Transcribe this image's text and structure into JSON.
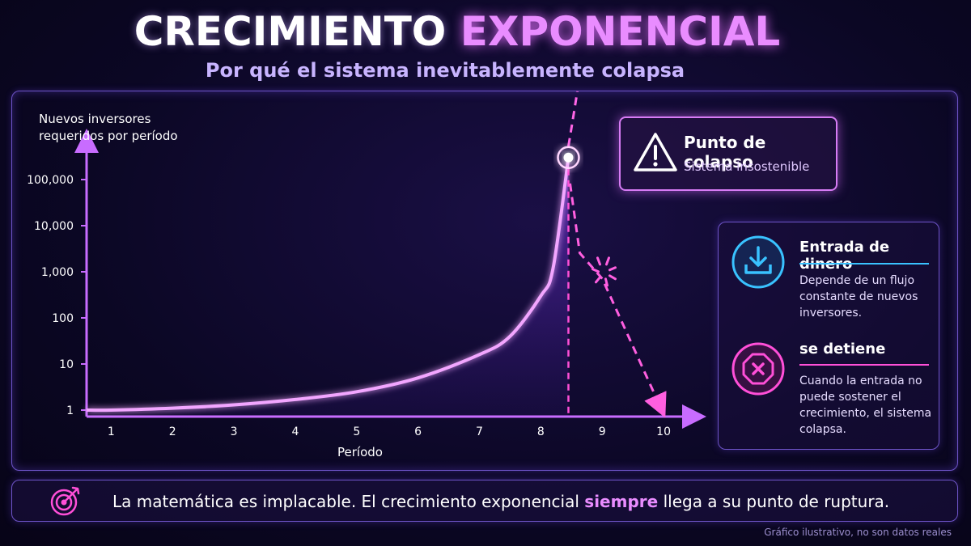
{
  "header": {
    "title_part1": "CRECIMIENTO",
    "title_part2": "EXPONENCIAL",
    "subtitle": "Por qué el sistema inevitablemente colapsa"
  },
  "chart_data": {
    "type": "line",
    "ylabel_line1": "Nuevos inversores",
    "ylabel_line2": "requeridos por período",
    "xlabel": "Período",
    "y_scale": "log",
    "y_ticks": [
      "1",
      "10",
      "100",
      "1,000",
      "10,000",
      "100,000"
    ],
    "x_ticks": [
      "1",
      "2",
      "3",
      "4",
      "5",
      "6",
      "7",
      "8",
      "9",
      "10"
    ],
    "xlim": [
      0.6,
      10.5
    ],
    "collapse_x": 8.45,
    "collapse_y": 300000,
    "series": [
      {
        "x": [
          0.6,
          1,
          2,
          3,
          4,
          5,
          6,
          7,
          7.5,
          8,
          8.2,
          8.45
        ],
        "y": [
          1,
          1,
          1.1,
          1.3,
          1.7,
          2.5,
          5,
          16,
          40,
          300,
          1200,
          300000
        ]
      }
    ],
    "grid": false
  },
  "callout": {
    "title": "Punto de colapso",
    "subtitle": "Sistema insostenible",
    "icon": "warning-icon"
  },
  "panel": {
    "item1": {
      "heading": "Entrada de dinero",
      "text": "Depende de un flujo constante de nuevos inversores.",
      "icon": "download-inbox-icon",
      "color": "#39c2ff"
    },
    "item2": {
      "heading": "se detiene",
      "text": "Cuando la entrada no puede sostener el crecimiento, el sistema colapsa.",
      "icon": "stop-octagon-icon",
      "color": "#ff4fd8"
    }
  },
  "footer": {
    "message_before": "La matemática es implacable. El crecimiento exponencial",
    "message_highlight": "siempre",
    "message_after": "llega a su punto de ruptura.",
    "icon": "target-icon",
    "note": "Gráfico ilustrativo, no son datos reales"
  },
  "colors": {
    "accent": "#e98cff",
    "curve": "#f2a6ff",
    "axis": "#c86cff",
    "frame": "#6e54c8"
  }
}
